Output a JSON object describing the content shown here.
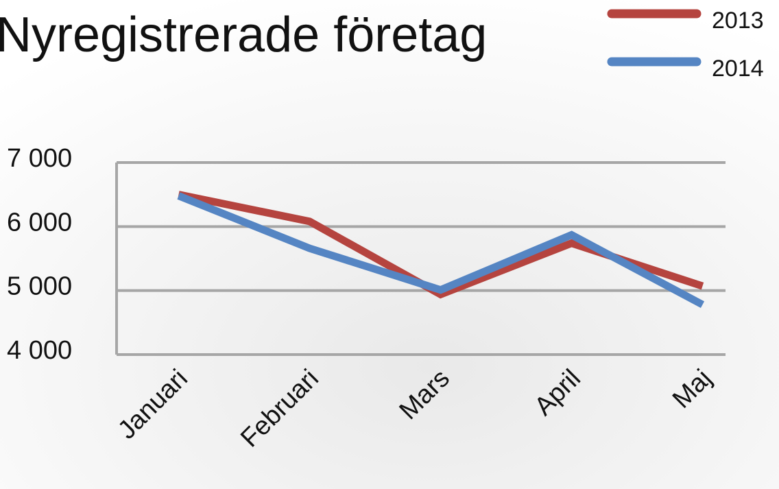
{
  "chart_data": {
    "type": "line",
    "title": "Nyregistrerade företag",
    "categories": [
      "Januari",
      "Februari",
      "Mars",
      "April",
      "Maj"
    ],
    "series": [
      {
        "name": "2013",
        "color": "#b5443f",
        "values": [
          6500,
          6080,
          4940,
          5740,
          5070
        ]
      },
      {
        "name": "2014",
        "color": "#5585c3",
        "values": [
          6480,
          5660,
          5010,
          5870,
          4780
        ]
      }
    ],
    "ylim": [
      4000,
      7000
    ],
    "yticks": [
      {
        "value": 4000,
        "label": "4 000"
      },
      {
        "value": 5000,
        "label": "5 000"
      },
      {
        "value": 6000,
        "label": "6 000"
      },
      {
        "value": 7000,
        "label": "7 000"
      }
    ],
    "grid": true,
    "legend": "top-right"
  }
}
